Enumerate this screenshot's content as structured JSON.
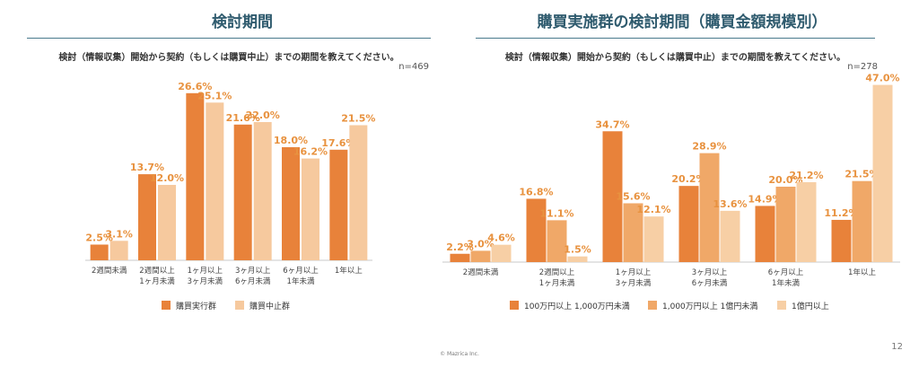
{
  "chart_data": [
    {
      "type": "bar",
      "title": "検討期間",
      "subtitle": "検討（情報収集）開始から契約（もしくは購買中止）までの期間を教えてください。",
      "n": "n=469",
      "categories": [
        [
          "2週間未満"
        ],
        [
          "2週間以上",
          "1ヶ月未満"
        ],
        [
          "1ヶ月以上",
          "3ヶ月未満"
        ],
        [
          "3ヶ月以上",
          "6ヶ月未満"
        ],
        [
          "6ヶ月以上",
          "1年未満"
        ],
        [
          "1年以上"
        ]
      ],
      "series": [
        {
          "name": "購買実行群",
          "color": "#e8823a",
          "values": [
            2.5,
            13.7,
            26.6,
            21.6,
            18.0,
            17.6
          ]
        },
        {
          "name": "購買中止群",
          "color": "#f6c99e",
          "values": [
            3.1,
            12.0,
            25.1,
            22.0,
            16.2,
            21.5
          ]
        }
      ],
      "ylim": [
        0,
        30
      ],
      "label_color": "#e8923f"
    },
    {
      "type": "bar",
      "title": "購買実施群の検討期間（購買金額規模別）",
      "subtitle": "検討（情報収集）開始から契約（もしくは購買中止）までの期間を教えてください。",
      "n": "n=278",
      "categories": [
        [
          "2週間未満"
        ],
        [
          "2週間以上",
          "1ヶ月未満"
        ],
        [
          "1ヶ月以上",
          "3ヶ月未満"
        ],
        [
          "3ヶ月以上",
          "6ヶ月未満"
        ],
        [
          "6ヶ月以上",
          "1年未満"
        ],
        [
          "1年以上"
        ]
      ],
      "series": [
        {
          "name": "100万円以上 1,000万円未満",
          "color": "#e8823a",
          "values": [
            2.2,
            16.8,
            34.7,
            20.2,
            14.9,
            11.2
          ]
        },
        {
          "name": "1,000万円以上 1億円未満",
          "color": "#f0a868",
          "values": [
            3.0,
            11.1,
            15.6,
            28.9,
            20.0,
            21.5
          ]
        },
        {
          "name": "1億円以上",
          "color": "#f7cfa5",
          "values": [
            4.6,
            1.5,
            12.1,
            13.6,
            21.2,
            47.0
          ]
        }
      ],
      "ylim": [
        0,
        50
      ],
      "label_color": "#e8923f"
    }
  ],
  "footer": "© Mazrica Inc.",
  "page_number": "12"
}
